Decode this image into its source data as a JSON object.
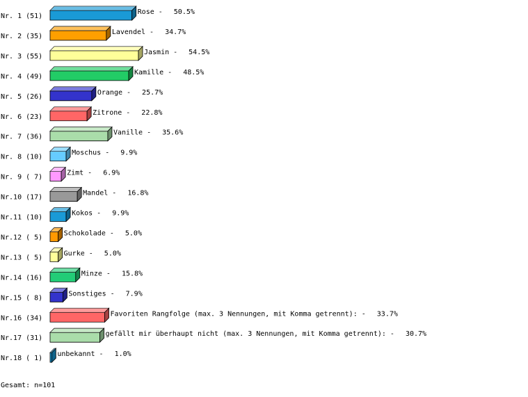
{
  "chart_data": {
    "type": "bar3d",
    "categories": [
      "Nr. 1 (51)",
      "Nr. 2 (35)",
      "Nr. 3 (55)",
      "Nr. 4 (49)",
      "Nr. 5 (26)",
      "Nr. 6 (23)",
      "Nr. 7 (36)",
      "Nr. 8 (10)",
      "Nr. 9 ( 7)",
      "Nr.10 (17)",
      "Nr.11 (10)",
      "Nr.12 ( 5)",
      "Nr.13 ( 5)",
      "Nr.14 (16)",
      "Nr.15 ( 8)",
      "Nr.16 (34)",
      "Nr.17 (31)",
      "Nr.18 ( 1)"
    ],
    "names": [
      "Rose -",
      "Lavendel -",
      "Jasmin -",
      "Kamille -",
      "Orange -",
      "Zitrone -",
      "Vanille -",
      "Moschus -",
      "Zimt -",
      "Mandel -",
      "Kokos -",
      "Schokolade -",
      "Gurke -",
      "Minze -",
      "Sonstiges -",
      "Favoriten Rangfolge (max. 3 Nennungen, mit Komma getrennt): -",
      "gefällt mir überhaupt nicht (max. 3 Nennungen, mit Komma getrennt): -",
      "unbekannt -"
    ],
    "values": [
      50.5,
      34.7,
      54.5,
      48.5,
      25.7,
      22.8,
      35.6,
      9.9,
      6.9,
      16.8,
      9.9,
      5.0,
      5.0,
      15.8,
      7.9,
      33.7,
      30.7,
      1.0
    ],
    "value_labels": [
      "50.5%",
      "34.7%",
      "54.5%",
      "48.5%",
      "25.7%",
      "22.8%",
      "35.6%",
      "9.9%",
      "6.9%",
      "16.8%",
      "9.9%",
      "5.0%",
      "5.0%",
      "15.8%",
      "7.9%",
      "33.7%",
      "30.7%",
      "1.0%"
    ],
    "colors": [
      "#1a9ad6",
      "#ff9f00",
      "#ffff99",
      "#22cc66",
      "#3333cc",
      "#ff6666",
      "#aaddaa",
      "#66ccff",
      "#ff99ff",
      "#999999",
      "#1a9ad6",
      "#ff9900",
      "#ffff99",
      "#22cc77",
      "#3333cc",
      "#ff6666",
      "#aaddaa",
      "#1a9ad6"
    ],
    "footer": "Gesamt: n=101"
  }
}
